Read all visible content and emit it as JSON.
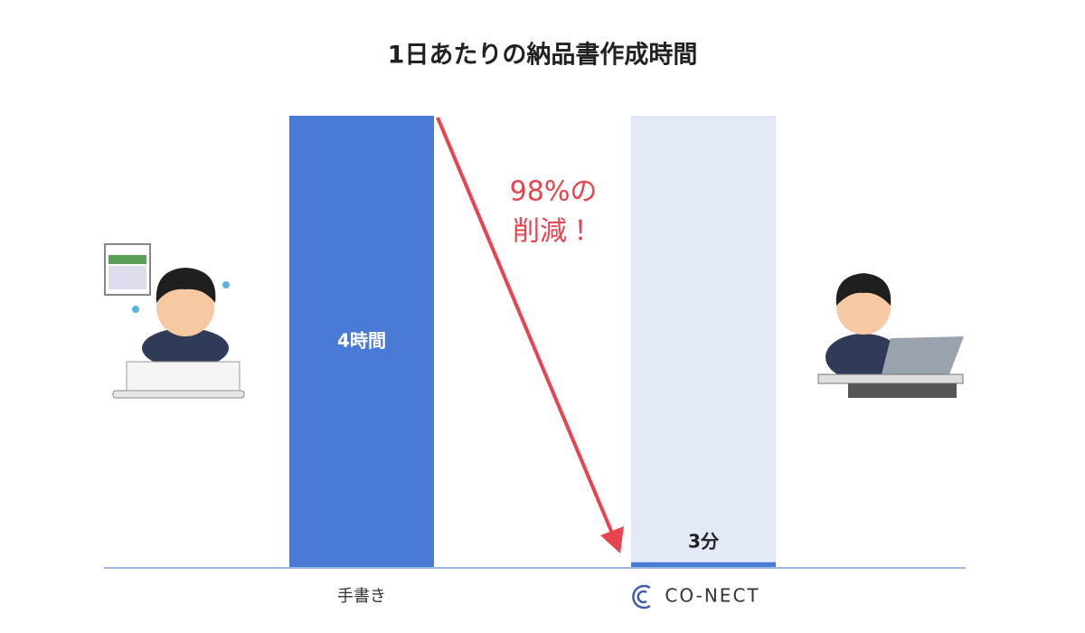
{
  "chart_data": {
    "type": "bar",
    "title": "1日あたりの納品書作成時間",
    "categories": [
      "手書き",
      "CO-NECT"
    ],
    "values": [
      240,
      3
    ],
    "value_labels": [
      "4時間",
      "3分"
    ],
    "color": "#4a7bd4",
    "track_color": "#e3e9f7",
    "ylim": [
      0,
      240
    ],
    "annotation": [
      "98%の",
      "削減！"
    ],
    "annotation_color": "#e8434f"
  }
}
